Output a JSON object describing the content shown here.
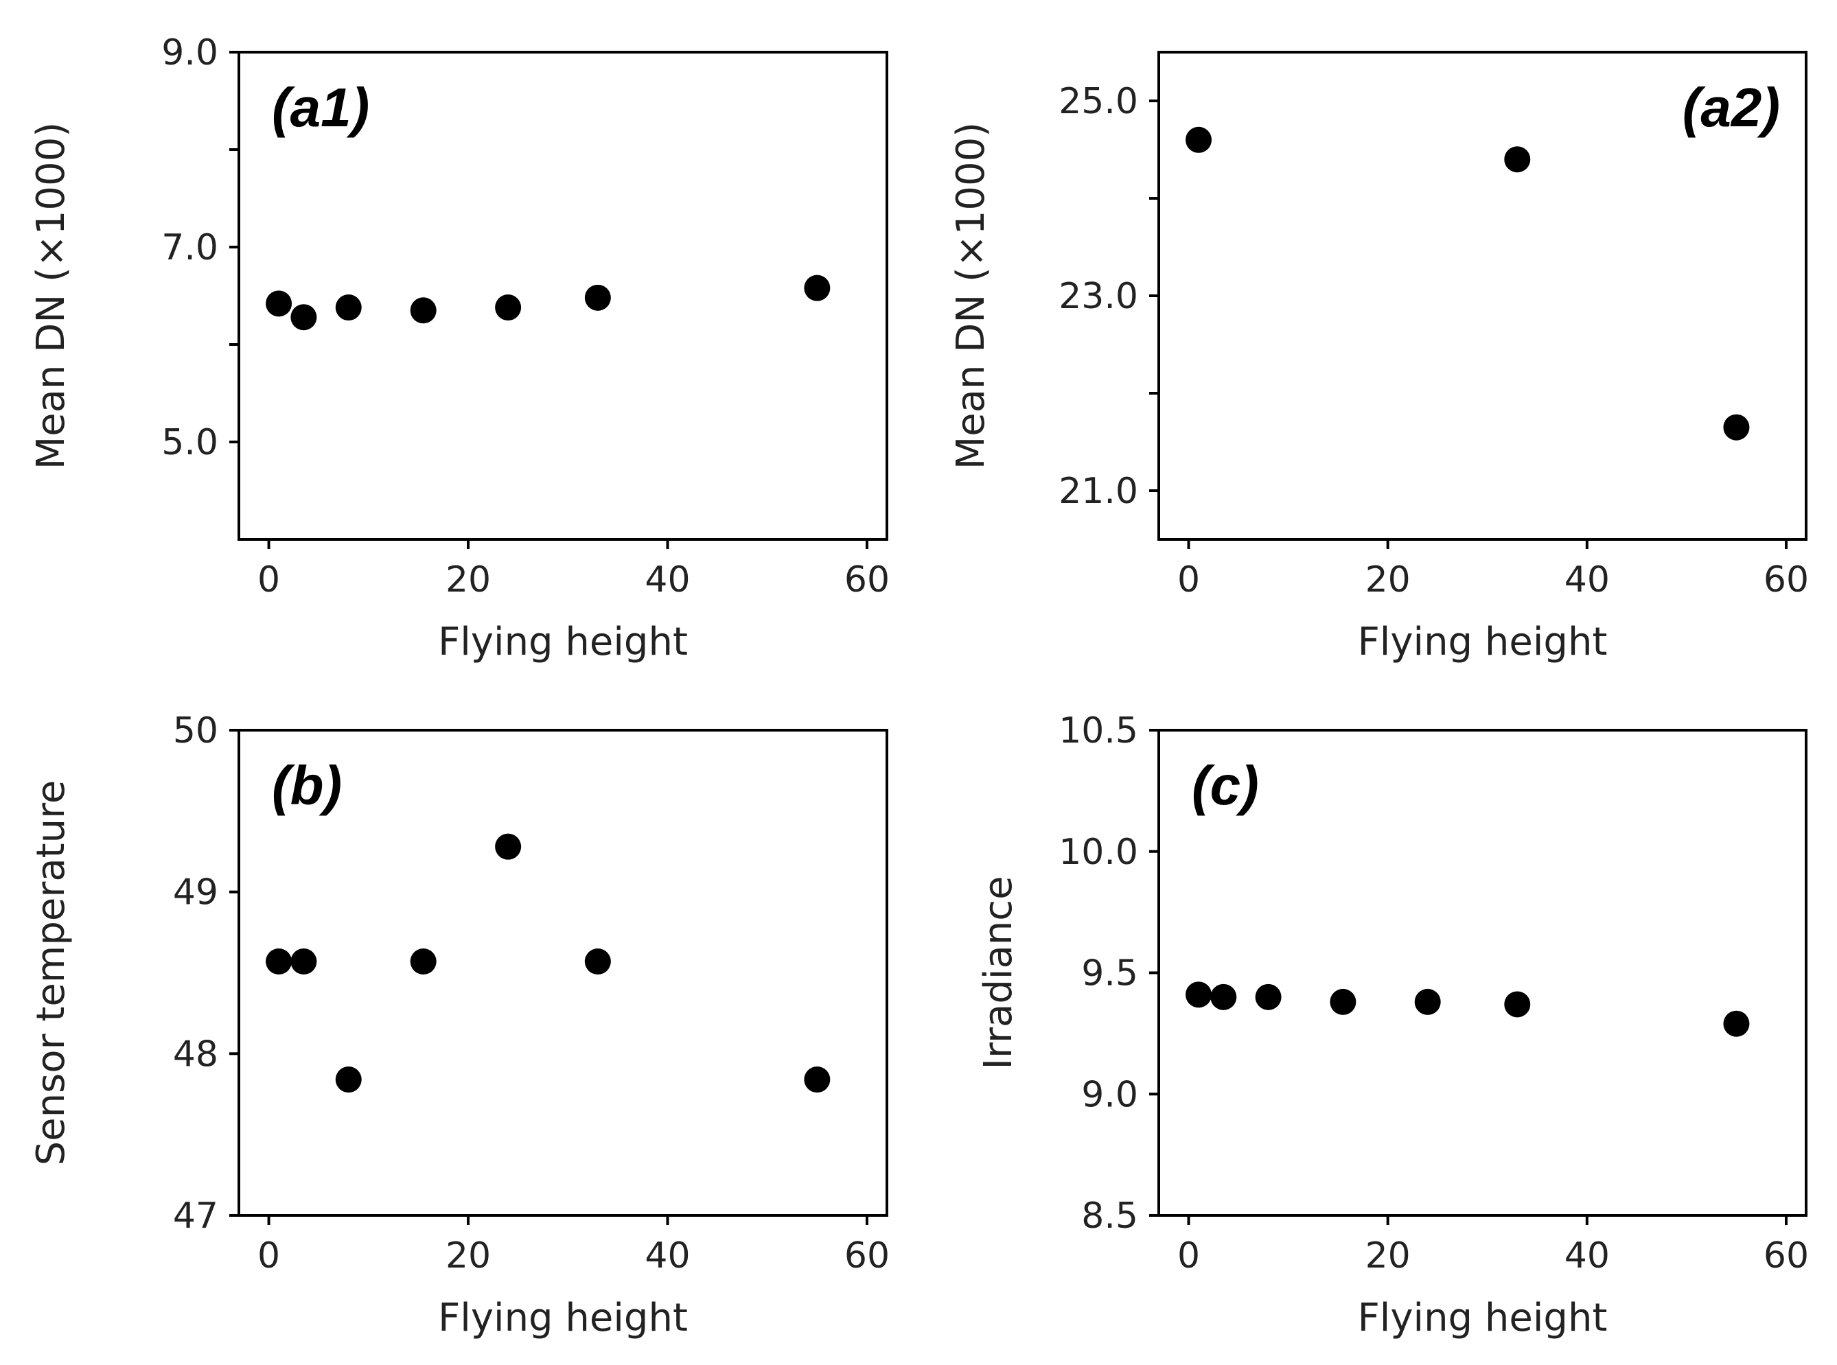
{
  "chart_data": [
    {
      "type": "scatter",
      "panel_label": "(a1)",
      "xlabel": "Flying height",
      "ylabel": "Mean DN (×1000)",
      "xlim": [
        -3,
        62
      ],
      "ylim": [
        4.0,
        9.0
      ],
      "xticks": [
        0,
        20,
        40,
        60
      ],
      "xtick_labels": [
        "0",
        "20",
        "40",
        "60"
      ],
      "yticks": [
        5.0,
        6.0,
        7.0,
        8.0,
        9.0
      ],
      "ytick_labels": [
        "5.0",
        "",
        "7.0",
        "",
        "9.0"
      ],
      "label_position": "top-left",
      "marker_color": "#000000",
      "x": [
        1,
        3.5,
        8,
        15.5,
        24,
        33,
        55
      ],
      "y": [
        6.42,
        6.28,
        6.38,
        6.35,
        6.38,
        6.48,
        6.58
      ]
    },
    {
      "type": "scatter",
      "panel_label": "(a2)",
      "xlabel": "Flying height",
      "ylabel": "Mean DN (×1000)",
      "xlim": [
        -3,
        62
      ],
      "ylim": [
        20.5,
        25.5
      ],
      "xticks": [
        0,
        20,
        40,
        60
      ],
      "xtick_labels": [
        "0",
        "20",
        "40",
        "60"
      ],
      "yticks": [
        21.0,
        22.0,
        23.0,
        24.0,
        25.0
      ],
      "ytick_labels": [
        "21.0",
        "",
        "23.0",
        "",
        "25.0"
      ],
      "label_position": "top-right",
      "marker_color": "#000000",
      "x": [
        1,
        33,
        55
      ],
      "y": [
        24.6,
        24.4,
        21.65
      ]
    },
    {
      "type": "scatter",
      "panel_label": "(b)",
      "xlabel": "Flying height",
      "ylabel": "Sensor temperature",
      "xlim": [
        -3,
        62
      ],
      "ylim": [
        47,
        50
      ],
      "xticks": [
        0,
        20,
        40,
        60
      ],
      "xtick_labels": [
        "0",
        "20",
        "40",
        "60"
      ],
      "yticks": [
        47,
        48,
        49,
        50
      ],
      "ytick_labels": [
        "47",
        "48",
        "49",
        "50"
      ],
      "label_position": "top-left",
      "marker_color": "#000000",
      "x": [
        1,
        3.5,
        8,
        15.5,
        24,
        33,
        55
      ],
      "y": [
        48.57,
        48.57,
        47.84,
        48.57,
        49.28,
        48.57,
        47.84
      ]
    },
    {
      "type": "scatter",
      "panel_label": "(c)",
      "xlabel": "Flying height",
      "ylabel": "Irradiance",
      "xlim": [
        -3,
        62
      ],
      "ylim": [
        8.5,
        10.5
      ],
      "xticks": [
        0,
        20,
        40,
        60
      ],
      "xtick_labels": [
        "0",
        "20",
        "40",
        "60"
      ],
      "yticks": [
        8.5,
        9.0,
        9.5,
        10.0,
        10.5
      ],
      "ytick_labels": [
        "8.5",
        "9.0",
        "9.5",
        "10.0",
        "10.5"
      ],
      "label_position": "top-left",
      "marker_color": "#000000",
      "x": [
        1,
        3.5,
        8,
        15.5,
        24,
        33,
        55
      ],
      "y": [
        9.41,
        9.4,
        9.4,
        9.38,
        9.38,
        9.37,
        9.29
      ]
    }
  ]
}
